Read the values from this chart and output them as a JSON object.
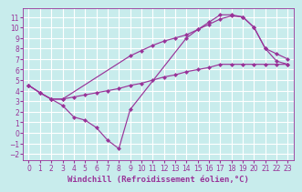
{
  "xlabel": "Windchill (Refroidissement éolien,°C)",
  "bg_color": "#c8ecec",
  "grid_color": "#ffffff",
  "line_color": "#993399",
  "xlim": [
    -0.5,
    23.5
  ],
  "ylim": [
    -2.6,
    11.8
  ],
  "xticks": [
    0,
    1,
    2,
    3,
    4,
    5,
    6,
    7,
    8,
    9,
    10,
    11,
    12,
    13,
    14,
    15,
    16,
    17,
    18,
    19,
    20,
    21,
    22,
    23
  ],
  "yticks": [
    -2,
    -1,
    0,
    1,
    2,
    3,
    4,
    5,
    6,
    7,
    8,
    9,
    10,
    11
  ],
  "line1_x": [
    0,
    1,
    2,
    3,
    4,
    5,
    6,
    7,
    8,
    9,
    14,
    15,
    16,
    17,
    18,
    19,
    20,
    21,
    22,
    23
  ],
  "line1_y": [
    4.5,
    3.8,
    3.2,
    2.6,
    1.5,
    1.2,
    0.5,
    -0.7,
    -1.5,
    2.2,
    9.0,
    9.8,
    10.5,
    11.2,
    11.2,
    11.0,
    10.0,
    8.0,
    6.8,
    6.5
  ],
  "line2_x": [
    0,
    1,
    2,
    3,
    9,
    10,
    11,
    12,
    13,
    14,
    15,
    16,
    17,
    18,
    19,
    20,
    21,
    22,
    23
  ],
  "line2_y": [
    4.5,
    3.8,
    3.2,
    3.2,
    7.3,
    7.8,
    8.3,
    8.7,
    9.0,
    9.3,
    9.8,
    10.3,
    10.8,
    11.1,
    11.0,
    10.0,
    8.0,
    7.5,
    7.0
  ],
  "line3_x": [
    0,
    1,
    2,
    3,
    4,
    5,
    6,
    7,
    8,
    9,
    10,
    11,
    12,
    13,
    14,
    15,
    16,
    17,
    18,
    19,
    20,
    21,
    22,
    23
  ],
  "line3_y": [
    4.5,
    3.8,
    3.2,
    3.2,
    3.4,
    3.6,
    3.8,
    4.0,
    4.2,
    4.5,
    4.7,
    5.0,
    5.3,
    5.5,
    5.8,
    6.0,
    6.2,
    6.5,
    6.5,
    6.5,
    6.5,
    6.5,
    6.5,
    6.5
  ],
  "tick_fontsize": 5.5,
  "label_fontsize": 6.5,
  "marker": "D",
  "markersize": 2.5,
  "linewidth": 0.85
}
